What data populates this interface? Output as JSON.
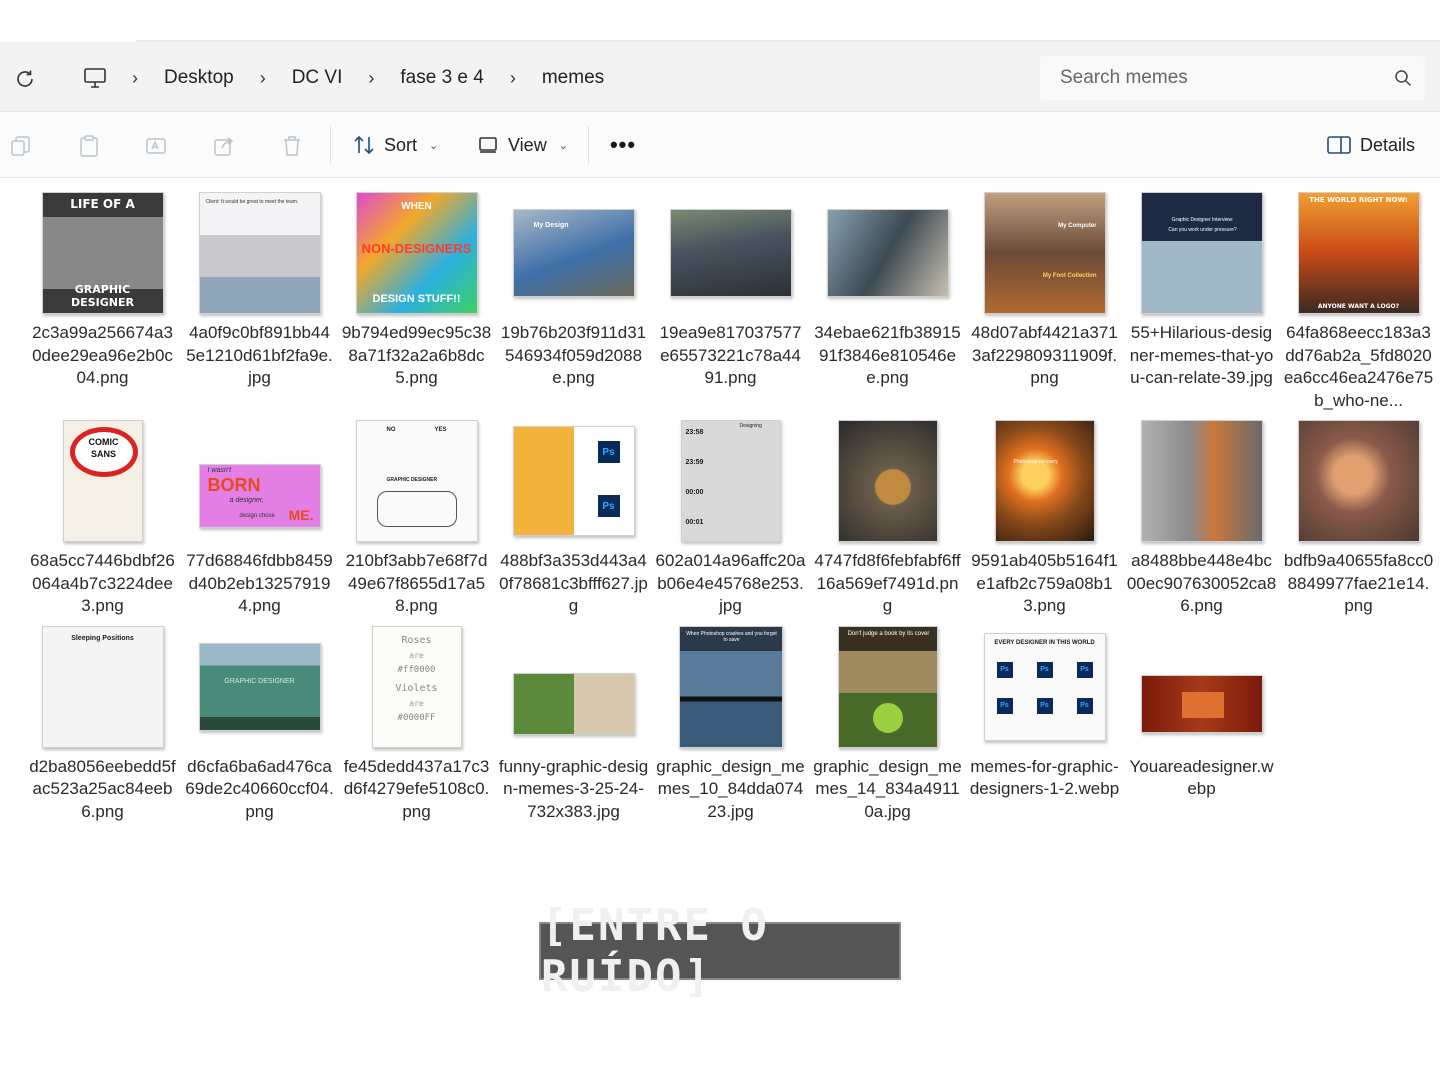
{
  "breadcrumb": {
    "items": [
      "Desktop",
      "DC VI",
      "fase 3 e 4",
      "memes"
    ],
    "separator": "›"
  },
  "search": {
    "placeholder": "Search memes"
  },
  "toolbar": {
    "sort_label": "Sort",
    "view_label": "View",
    "more_label": "•••",
    "details_label": "Details"
  },
  "files": [
    {
      "name": "2c3a99a256674a30dee29ea96e2b0c04.png",
      "thumb_text": [
        "LIFE OF A",
        "GRAPHIC DESIGNER"
      ],
      "color": "#5a5a5a"
    },
    {
      "name": "4a0f9c0bf891bb445e1210d61bf2fa9e.jpg",
      "thumb_text": [
        "Client: It would be great to meet the team."
      ],
      "color": "#e8e8ea"
    },
    {
      "name": "9b794ed99ec95c388a71f32a2a6b8dc5.png",
      "thumb_text": [
        "WHEN",
        "NON-DESIGNERS",
        "DESIGN STUFF!!"
      ],
      "color": "#c94ad8"
    },
    {
      "name": "19b76b203f911d31546934f059d2088e.png",
      "thumb_text": [
        "My Design"
      ],
      "color": "#3d6fa8"
    },
    {
      "name": "19ea9e817037577e65573221c78a4491.png",
      "thumb_text": [],
      "color": "#4a5560"
    },
    {
      "name": "34ebae621fb3891591f3846e810546ee.png",
      "thumb_text": [],
      "color": "#3c4a52"
    },
    {
      "name": "48d07abf4421a3713af229809311909f.png",
      "thumb_text": [
        "My Computer",
        "My Font Collection"
      ],
      "color": "#6b4a38"
    },
    {
      "name": "55+Hilarious-designer-memes-that-you-can-relate-39.jpg",
      "thumb_text": [
        "Graphic Designer Interview:",
        "Can you work under pressure?"
      ],
      "color": "#1e2a44"
    },
    {
      "name": "64fa868eecc183a3dd76ab2a_5fd8020ea6cc46ea2476e75b_who-ne...",
      "thumb_text": [
        "THE WORLD RIGHT NOW:",
        "ANYONE WANT A LOGO?"
      ],
      "color": "#c84a18"
    },
    {
      "name": "68a5cc7446bdbf26064a4b7c3224dee3.png",
      "thumb_text": [
        "COMIC",
        "SANS"
      ],
      "color": "#f4f0e6"
    },
    {
      "name": "77d68846fdbb8459d40b2eb132579194.png",
      "thumb_text": [
        "I wasn't",
        "BORN",
        "a designer,",
        "design chose",
        "ME."
      ],
      "color": "#e27ee4"
    },
    {
      "name": "210bf3abb7e68f7d49e67f8655d17a58.png",
      "thumb_text": [
        "NO",
        "YES",
        "GRAPHIC DESIGNER"
      ],
      "color": "#fafafa"
    },
    {
      "name": "488bf3a353d443a40f78681c3bfff627.jpg",
      "thumb_text": [
        "Ps",
        "Ps"
      ],
      "color": "#f3b23c"
    },
    {
      "name": "602a014a96affc20ab06e4e45768e253.jpg",
      "thumb_text": [
        "23:58",
        "23:59",
        "00:00",
        "00:01",
        "Designing"
      ],
      "color": "#d9d9d9"
    },
    {
      "name": "4747fd8f6febfabf6ff16a569ef7491d.png",
      "thumb_text": [],
      "color": "#6b5d4a"
    },
    {
      "name": "9591ab405b5164f1e1afb2c759a08b13.png",
      "thumb_text": [
        "Photoshop recovery"
      ],
      "color": "#8a4a1a"
    },
    {
      "name": "a8488bbe448e4bc00ec907630052ca86.png",
      "thumb_text": [],
      "color": "#8b8b8b"
    },
    {
      "name": "bdfb9a40655fa8cc08849977fae21e14.png",
      "thumb_text": [],
      "color": "#8a5a4a"
    },
    {
      "name": "d2ba8056eebedd5fac523a25ac84eeb6.png",
      "thumb_text": [
        "Sleeping Positions"
      ],
      "color": "#f5f5f5"
    },
    {
      "name": "d6cfa6ba6ad476ca69de2c40660ccf04.png",
      "thumb_text": [
        "GRAPHIC DESIGNER"
      ],
      "color": "#4a8a7a"
    },
    {
      "name": "fe45dedd437a17c3d6f4279efe5108c0.png",
      "thumb_text": [
        "Roses",
        "are",
        "#ff0000",
        "Violets",
        "are",
        "#0000FF"
      ],
      "color": "#fbfbf8"
    },
    {
      "name": "funny-graphic-design-memes-3-25-24-732x383.jpg",
      "thumb_text": [],
      "color": "#5a8a3a"
    },
    {
      "name": "graphic_design_memes_10_84dda07423.jpg",
      "thumb_text": [
        "When Photoshop crashes and you forgot to save"
      ],
      "color": "#2a3a4a"
    },
    {
      "name": "graphic_design_memes_14_834a49110a.jpg",
      "thumb_text": [
        "Don't judge a book by its cover"
      ],
      "color": "#6b5a3a"
    },
    {
      "name": "memes-for-graphic-designers-1-2.webp",
      "thumb_text": [
        "EVERY DESIGNER IN THIS WORLD",
        "Ps",
        "Ps",
        "Ps",
        "Ps",
        "Ps",
        "Ps"
      ],
      "color": "#fafafa"
    },
    {
      "name": "Youareadesigner.webp",
      "thumb_text": [],
      "color": "#a83a1a"
    }
  ],
  "caption": {
    "text": "[ENTRE O RUÍDO]"
  },
  "colors": {
    "address_bg": "#f3f3f3",
    "toolbar_bg": "#fbfbfb",
    "caption_bg": "#555555"
  }
}
